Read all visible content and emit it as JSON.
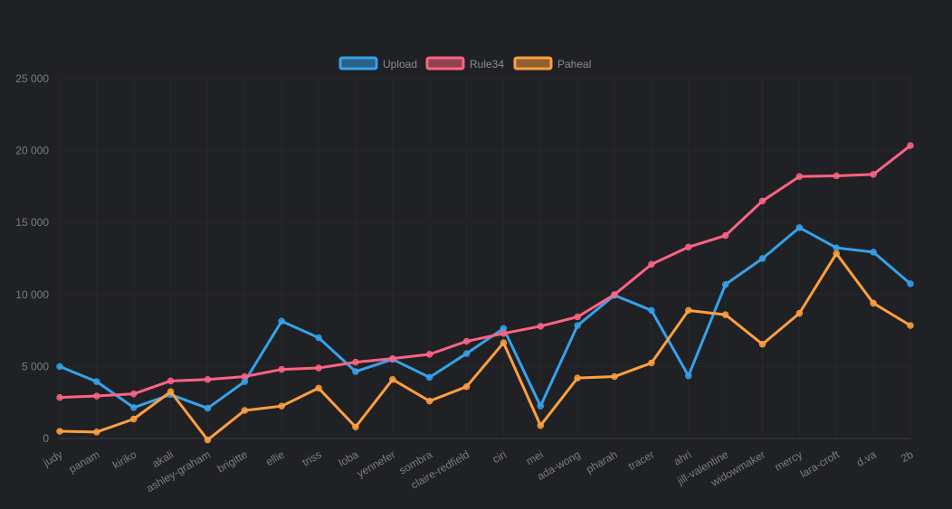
{
  "chart_data": {
    "type": "line",
    "categories": [
      "judy",
      "panam",
      "kiriko",
      "akali",
      "ashley-graham",
      "brigitte",
      "ellie",
      "triss",
      "loba",
      "yennefer",
      "sombra",
      "claire-redfield",
      "ciri",
      "mei",
      "ada-wong",
      "pharah",
      "tracer",
      "ahri",
      "jill-valentine",
      "widowmaker",
      "mercy",
      "lara-croft",
      "d.va",
      "2b"
    ],
    "ylim": [
      0,
      25000
    ],
    "yticks": [
      0,
      5000,
      10000,
      15000,
      20000,
      25000
    ],
    "ytick_labels": [
      "0",
      "5 000",
      "10 000",
      "15 000",
      "20 000",
      "25 000"
    ],
    "grid": true,
    "legend_position": "top-center",
    "series": [
      {
        "name": "Upload",
        "color": "#36a2eb",
        "values": [
          5000,
          3950,
          2150,
          3050,
          2100,
          3950,
          8150,
          7000,
          4650,
          5500,
          4250,
          5900,
          7650,
          2250,
          7850,
          9950,
          8900,
          4350,
          10700,
          12500,
          14650,
          13250,
          12950,
          10750
        ]
      },
      {
        "name": "Rule34",
        "color": "#ff6384",
        "values": [
          2850,
          2950,
          3100,
          4000,
          4100,
          4300,
          4800,
          4900,
          5300,
          5550,
          5850,
          6750,
          7300,
          7800,
          8450,
          10000,
          12100,
          13300,
          14100,
          16500,
          18200,
          18250,
          18350,
          20350
        ]
      },
      {
        "name": "Paheal",
        "color": "#ff9f40",
        "values": [
          500,
          450,
          1350,
          3250,
          -100,
          1950,
          2250,
          3500,
          800,
          4100,
          2600,
          3600,
          6650,
          900,
          4200,
          4300,
          5250,
          8900,
          8600,
          6550,
          8700,
          12850,
          9400,
          7850
        ]
      }
    ]
  }
}
